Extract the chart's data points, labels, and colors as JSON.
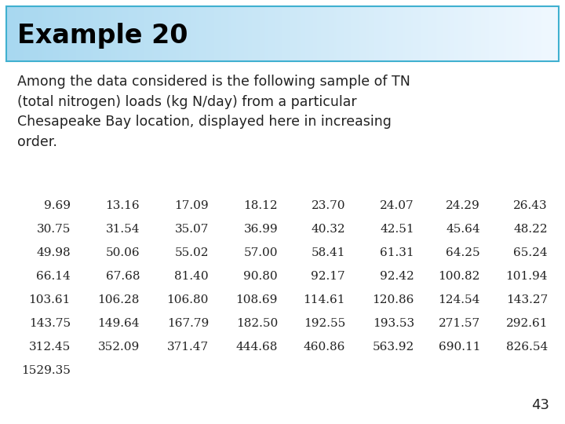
{
  "title": "Example 20",
  "description": "Among the data considered is the following sample of TN\n(total nitrogen) loads (kg N/day) from a particular\nChesapeake Bay location, displayed here in increasing\norder.",
  "data_rows": [
    [
      "9.69",
      "13.16",
      "17.09",
      "18.12",
      "23.70",
      "24.07",
      "24.29",
      "26.43"
    ],
    [
      "30.75",
      "31.54",
      "35.07",
      "36.99",
      "40.32",
      "42.51",
      "45.64",
      "48.22"
    ],
    [
      "49.98",
      "50.06",
      "55.02",
      "57.00",
      "58.41",
      "61.31",
      "64.25",
      "65.24"
    ],
    [
      "66.14",
      "67.68",
      "81.40",
      "90.80",
      "92.17",
      "92.42",
      "100.82",
      "101.94"
    ],
    [
      "103.61",
      "106.28",
      "106.80",
      "108.69",
      "114.61",
      "120.86",
      "124.54",
      "143.27"
    ],
    [
      "143.75",
      "149.64",
      "167.79",
      "182.50",
      "192.55",
      "193.53",
      "271.57",
      "292.61"
    ],
    [
      "312.45",
      "352.09",
      "371.47",
      "444.68",
      "460.86",
      "563.92",
      "690.11",
      "826.54"
    ],
    [
      "1529.35"
    ]
  ],
  "page_number": "43",
  "title_bg_color_left": "#a8d8f0",
  "title_bg_color_right": "#f0f8ff",
  "title_border_color": "#40b0d0",
  "title_text_color": "#000000",
  "body_text_color": "#222222",
  "data_text_color": "#222222",
  "bg_color": "#ffffff",
  "title_fontsize": 24,
  "desc_fontsize": 12.5,
  "data_fontsize": 11,
  "page_fontsize": 13
}
